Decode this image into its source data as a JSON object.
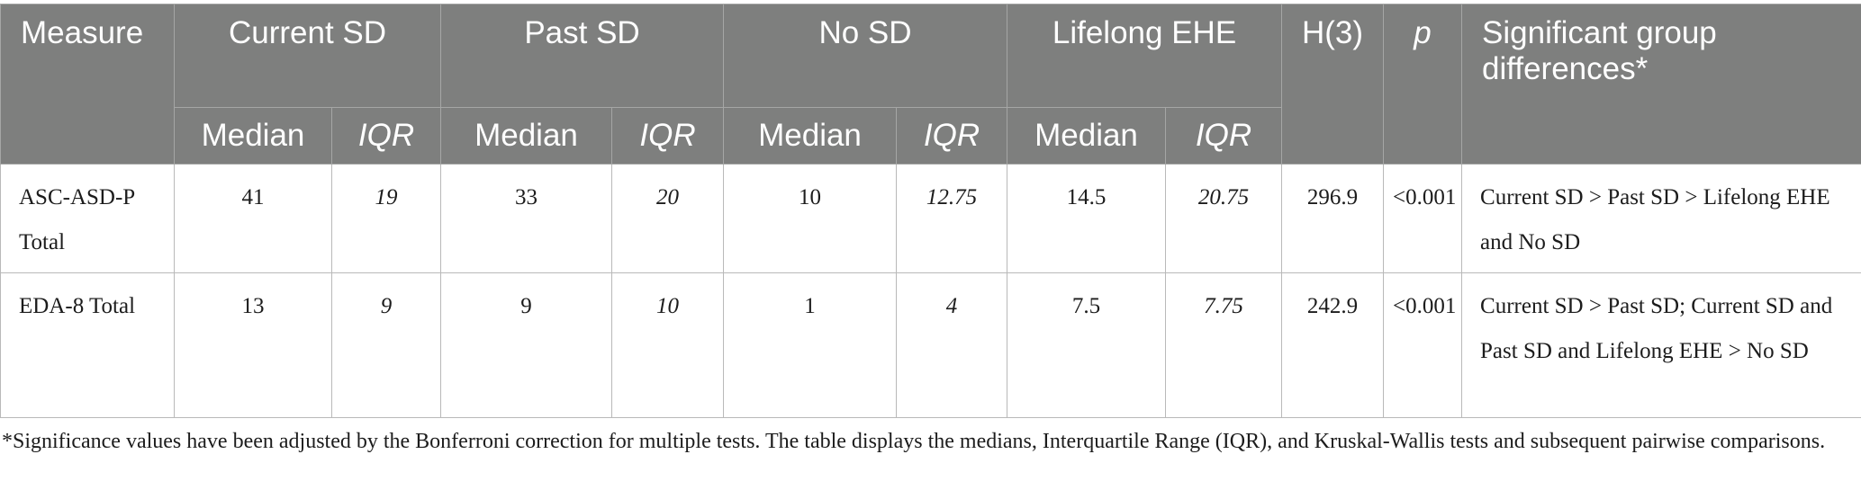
{
  "table": {
    "headers": {
      "measure": "Measure",
      "groups": [
        "Current SD",
        "Past SD",
        "No SD",
        "Lifelong EHE"
      ],
      "h3": "H(3)",
      "p": "p",
      "sig": "Significant group differences*",
      "median": "Median",
      "iqr": "IQR"
    },
    "rows": [
      {
        "measure": "ASC-ASD-P Total",
        "current_median": "41",
        "current_iqr": "19",
        "past_median": "33",
        "past_iqr": "20",
        "no_median": "10",
        "no_iqr": "12.75",
        "ehe_median": "14.5",
        "ehe_iqr": "20.75",
        "h3": "296.9",
        "p": "<0.001",
        "sig": "Current SD > Past SD > Lifelong EHE and No SD"
      },
      {
        "measure": "EDA-8 Total",
        "current_median": "13",
        "current_iqr": "9",
        "past_median": "9",
        "past_iqr": "10",
        "no_median": "1",
        "no_iqr": "4",
        "ehe_median": "7.5",
        "ehe_iqr": "7.75",
        "h3": "242.9",
        "p": "<0.001",
        "sig": "Current SD > Past SD; Current SD and Past SD and Lifelong EHE > No SD"
      }
    ]
  },
  "footnote": "*Significance values have been adjusted by the Bonferroni correction for multiple tests. The table displays the medians, Interquartile Range (IQR), and Kruskal-Wallis tests and subsequent pairwise comparisons."
}
